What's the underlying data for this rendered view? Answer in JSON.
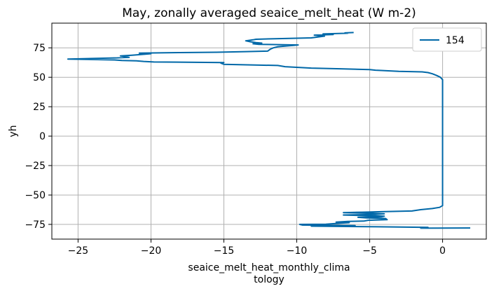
{
  "chart_data": {
    "type": "line",
    "title": "May, zonally averaged seaice_melt_heat (W m-2)",
    "xlabel_lines": [
      "seaice_melt_heat_monthly_clima",
      "tology"
    ],
    "ylabel": "yh",
    "xlim": [
      -26.8,
      3.0
    ],
    "ylim": [
      -87.5,
      96.0
    ],
    "xticks": [
      -25,
      -20,
      -15,
      -10,
      -5,
      0
    ],
    "xtick_labels": [
      "−25",
      "−20",
      "−15",
      "−10",
      "−5",
      "0"
    ],
    "yticks": [
      -75,
      -50,
      -25,
      0,
      25,
      50,
      75
    ],
    "ytick_labels": [
      "−75",
      "−50",
      "−25",
      "0",
      "25",
      "50",
      "75"
    ],
    "grid": true,
    "legend_position": "top-right",
    "series": [
      {
        "name": "154",
        "color": "#0068a8",
        "points": [
          [
            1.9,
            -78.0
          ],
          [
            -1.5,
            -78.2
          ],
          [
            -1.0,
            -77.5
          ],
          [
            -4.5,
            -77.0
          ],
          [
            -9.0,
            -76.5
          ],
          [
            -6.0,
            -76.0
          ],
          [
            -9.6,
            -75.6
          ],
          [
            -9.8,
            -75.0
          ],
          [
            -8.0,
            -74.8
          ],
          [
            -7.0,
            -74.0
          ],
          [
            -6.4,
            -73.5
          ],
          [
            -7.3,
            -73.0
          ],
          [
            -6.5,
            -72.5
          ],
          [
            -5.4,
            -72.2
          ],
          [
            -5.1,
            -71.5
          ],
          [
            -3.8,
            -71.0
          ],
          [
            -3.9,
            -70.0
          ],
          [
            -5.2,
            -69.5
          ],
          [
            -5.8,
            -69.0
          ],
          [
            -4.2,
            -68.5
          ],
          [
            -4.0,
            -68.0
          ],
          [
            -5.5,
            -67.5
          ],
          [
            -6.8,
            -67.0
          ],
          [
            -4.6,
            -66.5
          ],
          [
            -4.0,
            -66.0
          ],
          [
            -4.9,
            -65.5
          ],
          [
            -6.8,
            -65.0
          ],
          [
            -5.5,
            -64.6
          ],
          [
            -4.2,
            -64.2
          ],
          [
            -2.1,
            -63.6
          ],
          [
            -1.5,
            -62.5
          ],
          [
            -0.7,
            -61.5
          ],
          [
            -0.2,
            -60.5
          ],
          [
            0.0,
            -59.0
          ],
          [
            0.0,
            -50.0
          ],
          [
            0.0,
            -25.0
          ],
          [
            0.0,
            0.0
          ],
          [
            0.0,
            25.0
          ],
          [
            0.0,
            48.0
          ],
          [
            -0.15,
            50.0
          ],
          [
            -0.4,
            51.5
          ],
          [
            -0.7,
            53.0
          ],
          [
            -1.0,
            54.0
          ],
          [
            -1.4,
            54.6
          ],
          [
            -3.0,
            55.0
          ],
          [
            -4.2,
            55.8
          ],
          [
            -4.6,
            56.0
          ],
          [
            -5.0,
            56.5
          ],
          [
            -7.0,
            57.2
          ],
          [
            -9.0,
            57.8
          ],
          [
            -10.8,
            59.0
          ],
          [
            -11.3,
            60.0
          ],
          [
            -15.0,
            61.0
          ],
          [
            -15.2,
            62.0
          ],
          [
            -15.0,
            62.5
          ],
          [
            -19.8,
            63.0
          ],
          [
            -20.5,
            63.5
          ],
          [
            -21.0,
            64.0
          ],
          [
            -22.0,
            64.3
          ],
          [
            -22.5,
            64.7
          ],
          [
            -25.7,
            65.5
          ],
          [
            -22.3,
            66.5
          ],
          [
            -21.5,
            67.0
          ],
          [
            -22.1,
            68.2
          ],
          [
            -21.3,
            68.8
          ],
          [
            -20.0,
            70.0
          ],
          [
            -20.8,
            70.5
          ],
          [
            -18.0,
            71.0
          ],
          [
            -15.5,
            71.3
          ],
          [
            -13.5,
            71.8
          ],
          [
            -12.0,
            72.2
          ],
          [
            -11.8,
            74.0
          ],
          [
            -11.6,
            75.0
          ],
          [
            -11.3,
            76.0
          ],
          [
            -9.9,
            77.5
          ],
          [
            -12.6,
            78.0
          ],
          [
            -13.0,
            78.5
          ],
          [
            -12.4,
            79.0
          ],
          [
            -12.8,
            79.5
          ],
          [
            -13.2,
            80.2
          ],
          [
            -13.5,
            81.0
          ],
          [
            -13.0,
            81.8
          ],
          [
            -12.8,
            82.3
          ],
          [
            -11.5,
            82.8
          ],
          [
            -9.0,
            83.5
          ],
          [
            -8.1,
            85.0
          ],
          [
            -8.8,
            85.8
          ],
          [
            -7.5,
            86.3
          ],
          [
            -8.2,
            86.8
          ],
          [
            -6.5,
            87.4
          ],
          [
            -6.7,
            87.7
          ],
          [
            -6.1,
            88.0
          ]
        ]
      }
    ]
  }
}
